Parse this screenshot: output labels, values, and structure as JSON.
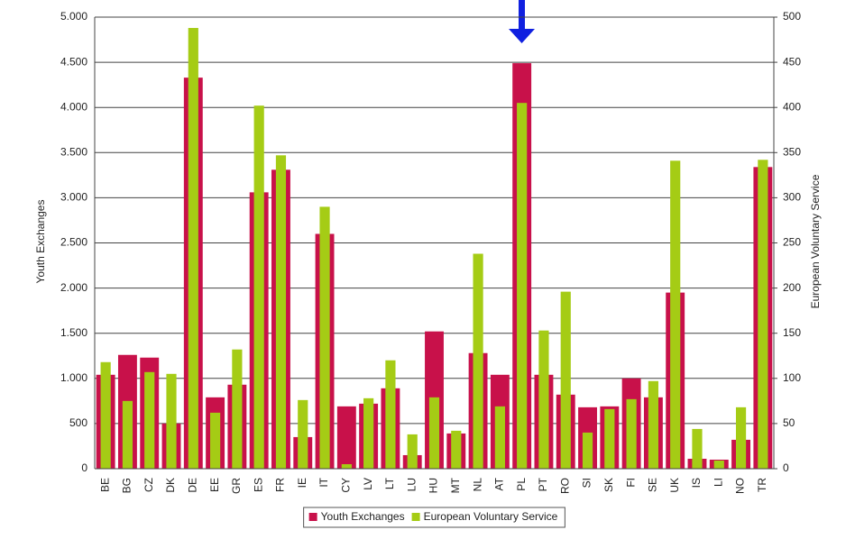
{
  "chart_data": {
    "type": "bar",
    "categories": [
      "BE",
      "BG",
      "CZ",
      "DK",
      "DE",
      "EE",
      "GR",
      "ES",
      "FR",
      "IE",
      "IT",
      "CY",
      "LV",
      "LT",
      "LU",
      "HU",
      "MT",
      "NL",
      "AT",
      "PL",
      "PT",
      "RO",
      "SI",
      "SK",
      "FI",
      "SE",
      "UK",
      "IS",
      "LI",
      "NO",
      "TR"
    ],
    "series": [
      {
        "name": "Youth Exchanges",
        "color": "#c8114a",
        "values": [
          1040,
          1260,
          1230,
          500,
          4330,
          790,
          930,
          3060,
          3310,
          350,
          2600,
          690,
          720,
          890,
          150,
          1520,
          390,
          1280,
          1040,
          4490,
          1040,
          820,
          680,
          690,
          1000,
          790,
          1950,
          110,
          100,
          320,
          3340
        ]
      },
      {
        "name": "European Voluntary Service",
        "color": "#a5cc15",
        "axis": "y2",
        "values": [
          118,
          75,
          107,
          105,
          488,
          62,
          132,
          402,
          347,
          76,
          290,
          5,
          78,
          120,
          38,
          79,
          42,
          238,
          69,
          405,
          153,
          196,
          40,
          66,
          77,
          97,
          341,
          44,
          9,
          68,
          342
        ]
      }
    ],
    "ylabel": "Youth Exchanges",
    "y2label": "European Voluntary Service",
    "ylim": [
      0,
      5000
    ],
    "yticks": [
      0,
      {
        "value": 500,
        "label": "500"
      },
      {
        "value": 1000,
        "label": "1.000"
      },
      {
        "value": 1500,
        "label": "1.500"
      },
      {
        "value": 2000,
        "label": "2.000"
      },
      {
        "value": 2500,
        "label": "2.500"
      },
      {
        "value": 3000,
        "label": "3.000"
      },
      {
        "value": 3500,
        "label": "3.500"
      },
      {
        "value": 4000,
        "label": "4.000"
      },
      {
        "value": 4500,
        "label": "4.500"
      },
      {
        "value": 5000,
        "label": "5.000"
      }
    ],
    "y2lim": [
      0,
      500
    ],
    "y2ticks": [
      0,
      50,
      100,
      150,
      200,
      250,
      300,
      350,
      400,
      450,
      500
    ],
    "grid": true,
    "legend": "bottom"
  }
}
